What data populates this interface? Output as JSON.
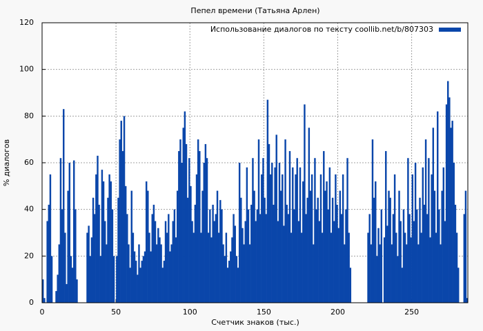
{
  "chart_data": {
    "type": "bar",
    "title": "Пепел времени (Татьяна Арлен)",
    "xlabel": "Счетчик знаков (тыс.)",
    "ylabel": "% диалогов",
    "xlim": [
      0,
      288
    ],
    "ylim": [
      0,
      120
    ],
    "xticks": [
      0,
      50,
      100,
      150,
      200,
      250
    ],
    "yticks": [
      0,
      20,
      40,
      60,
      80,
      100,
      120
    ],
    "grid": true,
    "legend": "upper right",
    "series": [
      {
        "name": "Использование диалогов по тексту coollib.net/b/807303",
        "color": "#0a46aa",
        "x": [
          0,
          1,
          2,
          3,
          4,
          5,
          6,
          7,
          8,
          9,
          10,
          11,
          12,
          13,
          14,
          15,
          16,
          17,
          18,
          19,
          20,
          21,
          22,
          23,
          24,
          25,
          26,
          27,
          28,
          29,
          30,
          31,
          32,
          33,
          34,
          35,
          36,
          37,
          38,
          39,
          40,
          41,
          42,
          43,
          44,
          45,
          46,
          47,
          48,
          49,
          50,
          51,
          52,
          53,
          54,
          55,
          56,
          57,
          58,
          59,
          60,
          61,
          62,
          63,
          64,
          65,
          66,
          67,
          68,
          69,
          70,
          71,
          72,
          73,
          74,
          75,
          76,
          77,
          78,
          79,
          80,
          81,
          82,
          83,
          84,
          85,
          86,
          87,
          88,
          89,
          90,
          91,
          92,
          93,
          94,
          95,
          96,
          97,
          98,
          99,
          100,
          101,
          102,
          103,
          104,
          105,
          106,
          107,
          108,
          109,
          110,
          111,
          112,
          113,
          114,
          115,
          116,
          117,
          118,
          119,
          120,
          121,
          122,
          123,
          124,
          125,
          126,
          127,
          128,
          129,
          130,
          131,
          132,
          133,
          134,
          135,
          136,
          137,
          138,
          139,
          140,
          141,
          142,
          143,
          144,
          145,
          146,
          147,
          148,
          149,
          150,
          151,
          152,
          153,
          154,
          155,
          156,
          157,
          158,
          159,
          160,
          161,
          162,
          163,
          164,
          165,
          166,
          167,
          168,
          169,
          170,
          171,
          172,
          173,
          174,
          175,
          176,
          177,
          178,
          179,
          180,
          181,
          182,
          183,
          184,
          185,
          186,
          187,
          188,
          189,
          190,
          191,
          192,
          193,
          194,
          195,
          196,
          197,
          198,
          199,
          200,
          201,
          202,
          203,
          204,
          205,
          206,
          207,
          208,
          209,
          210,
          211,
          212,
          213,
          214,
          215,
          216,
          217,
          218,
          219,
          220,
          221,
          222,
          223,
          224,
          225,
          226,
          227,
          228,
          229,
          230,
          231,
          232,
          233,
          234,
          235,
          236,
          237,
          238,
          239,
          240,
          241,
          242,
          243,
          244,
          245,
          246,
          247,
          248,
          249,
          250,
          251,
          252,
          253,
          254,
          255,
          256,
          257,
          258,
          259,
          260,
          261,
          262,
          263,
          264,
          265,
          266,
          267,
          268,
          269,
          270,
          271,
          272,
          273,
          274,
          275,
          276,
          277,
          278,
          279,
          280,
          281,
          282,
          283,
          284,
          285,
          286,
          287
        ],
        "values": [
          10,
          2,
          0,
          35,
          42,
          55,
          20,
          0,
          0,
          5,
          12,
          25,
          62,
          40,
          83,
          30,
          8,
          48,
          60,
          20,
          15,
          61,
          40,
          10,
          0,
          0,
          0,
          0,
          0,
          0,
          30,
          33,
          20,
          28,
          45,
          38,
          55,
          63,
          42,
          20,
          57,
          52,
          35,
          25,
          45,
          55,
          52,
          40,
          20,
          0,
          20,
          45,
          70,
          78,
          65,
          80,
          50,
          38,
          25,
          15,
          48,
          30,
          22,
          18,
          12,
          25,
          15,
          18,
          20,
          22,
          52,
          48,
          30,
          22,
          38,
          42,
          35,
          25,
          32,
          28,
          25,
          15,
          18,
          35,
          30,
          38,
          22,
          25,
          35,
          40,
          28,
          48,
          65,
          70,
          60,
          75,
          82,
          68,
          45,
          62,
          50,
          35,
          30,
          42,
          55,
          70,
          65,
          30,
          48,
          60,
          68,
          62,
          30,
          40,
          28,
          42,
          35,
          38,
          48,
          30,
          44,
          40,
          25,
          20,
          30,
          15,
          18,
          22,
          28,
          38,
          33,
          20,
          15,
          60,
          45,
          32,
          25,
          35,
          58,
          40,
          25,
          42,
          62,
          48,
          35,
          40,
          70,
          38,
          55,
          62,
          45,
          38,
          87,
          68,
          55,
          60,
          42,
          58,
          72,
          35,
          60,
          48,
          55,
          33,
          70,
          42,
          38,
          65,
          30,
          58,
          40,
          55,
          62,
          35,
          58,
          30,
          52,
          85,
          38,
          45,
          75,
          48,
          55,
          25,
          62,
          40,
          45,
          35,
          55,
          30,
          65,
          48,
          52,
          40,
          58,
          30,
          45,
          35,
          55,
          42,
          32,
          48,
          38,
          55,
          25,
          40,
          62,
          30,
          15,
          0,
          0,
          0,
          0,
          0,
          0,
          0,
          0,
          0,
          0,
          0,
          30,
          38,
          25,
          70,
          45,
          52,
          20,
          32,
          25,
          40,
          0,
          28,
          65,
          33,
          48,
          45,
          25,
          38,
          55,
          30,
          20,
          48,
          35,
          15,
          40,
          30,
          25,
          62,
          38,
          28,
          55,
          35,
          60,
          40,
          25,
          45,
          30,
          58,
          42,
          70,
          38,
          62,
          28,
          55,
          75,
          48,
          30,
          82,
          40,
          25,
          48,
          58,
          35,
          85,
          95,
          88,
          75,
          78,
          60,
          42,
          30,
          15,
          0,
          0,
          0,
          38,
          48,
          2
        ]
      }
    ]
  }
}
